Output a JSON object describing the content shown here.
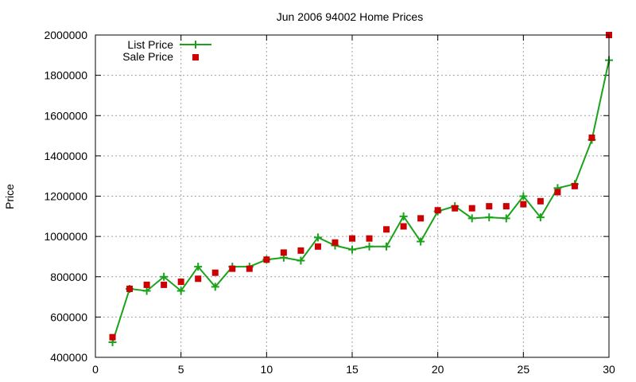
{
  "chart_data": {
    "type": "line",
    "title": "Jun 2006 94002 Home Prices",
    "xlabel": "",
    "ylabel": "Price",
    "xlim": [
      0,
      30
    ],
    "ylim": [
      400000,
      2000000
    ],
    "x_ticks": [
      0,
      5,
      10,
      15,
      20,
      25,
      30
    ],
    "y_ticks": [
      400000,
      600000,
      800000,
      1000000,
      1200000,
      1400000,
      1600000,
      1800000,
      2000000
    ],
    "grid": true,
    "legend_position": "top-left",
    "x": [
      1,
      2,
      3,
      4,
      5,
      6,
      7,
      8,
      9,
      10,
      11,
      12,
      13,
      14,
      15,
      16,
      17,
      18,
      19,
      20,
      21,
      22,
      23,
      24,
      25,
      26,
      27,
      28,
      29,
      30
    ],
    "series": [
      {
        "name": "List Price",
        "style": "line+cross",
        "color": "#1aa31a",
        "values": [
          475000,
          740000,
          730000,
          800000,
          730000,
          850000,
          750000,
          850000,
          850000,
          885000,
          895000,
          880000,
          995000,
          955000,
          935000,
          950000,
          950000,
          1100000,
          975000,
          1125000,
          1150000,
          1090000,
          1095000,
          1090000,
          1200000,
          1095000,
          1240000,
          1260000,
          1480000,
          1875000
        ]
      },
      {
        "name": "Sale Price",
        "style": "square",
        "color": "#cc0000",
        "values": [
          500000,
          740000,
          760000,
          760000,
          775000,
          790000,
          820000,
          840000,
          840000,
          885000,
          920000,
          930000,
          950000,
          970000,
          990000,
          990000,
          1035000,
          1050000,
          1090000,
          1130000,
          1140000,
          1140000,
          1150000,
          1150000,
          1160000,
          1175000,
          1220000,
          1250000,
          1490000,
          2000000
        ]
      }
    ]
  }
}
